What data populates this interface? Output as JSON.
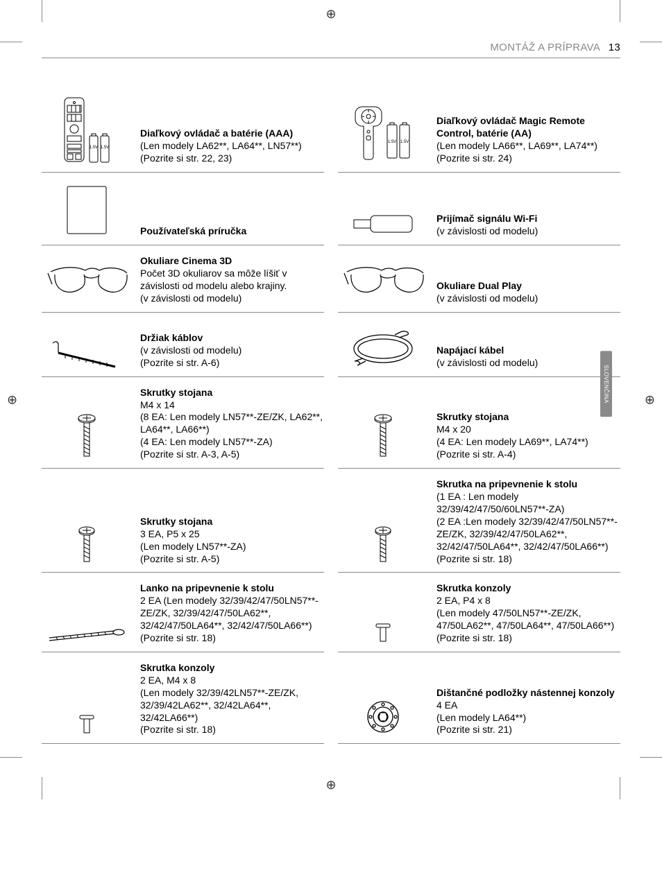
{
  "header": {
    "section": "MONTÁŽ A PRÍPRAVA",
    "page": "13"
  },
  "sidetab": "SLOVENČINA",
  "items": [
    {
      "col": 0,
      "title": "Diaľkový ovládač a batérie (AAA)",
      "sub": "(Len modely LA62**, LA64**, LN57**)\n(Pozrite si str. 22, 23)",
      "icon": "remote-batteries"
    },
    {
      "col": 1,
      "title": "Diaľkový ovládač Magic Remote Control, batérie (AA)",
      "sub": "(Len modely LA66**, LA69**, LA74**)\n(Pozrite si str. 24)",
      "icon": "magic-remote-batteries"
    },
    {
      "col": 0,
      "title": "Používateľská príručka",
      "sub": "",
      "icon": "manual"
    },
    {
      "col": 1,
      "title": "Prijímač signálu Wi-Fi",
      "sub": "(v závislosti od modelu)",
      "icon": "wifi-dongle"
    },
    {
      "col": 0,
      "title": "Okuliare Cinema 3D",
      "sub": "Počet 3D okuliarov sa môže líšiť v závislosti od modelu alebo krajiny.\n(v závislosti od modelu)",
      "icon": "glasses"
    },
    {
      "col": 1,
      "title": "Okuliare Dual Play",
      "sub": "(v závislosti od modelu)",
      "icon": "glasses"
    },
    {
      "col": 0,
      "title": "Držiak káblov",
      "sub": "(v závislosti od modelu)\n(Pozrite si str. A-6)",
      "icon": "cable-holder"
    },
    {
      "col": 1,
      "title": "Napájací kábel",
      "sub": "(v závislosti od modelu)",
      "icon": "power-cord"
    },
    {
      "col": 0,
      "title": "Skrutky stojana",
      "sub": "M4 x 14\n(8 EA: Len modely LN57**-ZE/ZK, LA62**, LA64**, LA66**)\n(4 EA: Len modely LN57**-ZA)\n(Pozrite si str. A-3, A-5)",
      "icon": "screw-long"
    },
    {
      "col": 1,
      "title": "Skrutky stojana",
      "sub": "M4 x 20\n(4 EA: Len modely LA69**, LA74**)\n(Pozrite si str. A-4)",
      "icon": "screw-long"
    },
    {
      "col": 0,
      "title": "Skrutky stojana",
      "sub": "3 EA, P5 x 25\n(Len modely LN57**-ZA)\n(Pozrite si str. A-5)",
      "icon": "screw-med"
    },
    {
      "col": 1,
      "title": "Skrutka na pripevnenie k stolu",
      "sub": "(1 EA : Len modely 32/39/42/47/50/60LN57**-ZA)\n(2 EA :Len modely 32/39/42/47/50LN57**-ZE/ZK, 32/39/42/47/50LA62**, 32/42/47/50LA64**, 32/42/47/50LA66**)\n(Pozrite si str. 18)",
      "icon": "screw-med"
    },
    {
      "col": 0,
      "title": "Lanko na pripevnenie k stolu",
      "sub": "2 EA (Len modely 32/39/42/47/50LN57**-ZE/ZK, 32/39/42/47/50LA62**, 32/42/47/50LA64**, 32/42/47/50LA66**)\n(Pozrite si str. 18)",
      "icon": "cable-tie"
    },
    {
      "col": 1,
      "title": "Skrutka konzoly",
      "sub": "2 EA, P4 x 8\n(Len modely 47/50LN57**-ZE/ZK, 47/50LA62**, 47/50LA64**, 47/50LA66**)\n(Pozrite si str. 18)",
      "icon": "screw-short"
    },
    {
      "col": 0,
      "title": "Skrutka konzoly",
      "sub": "2 EA, M4 x 8\n(Len modely 32/39/42LN57**-ZE/ZK, 32/39/42LA62**, 32/42LA64**, 32/42LA66**)\n(Pozrite si str. 18)",
      "icon": "screw-short"
    },
    {
      "col": 1,
      "title": "Dištančné podložky nástennej konzoly",
      "sub": "4 EA\n(Len modely LA64**)\n(Pozrite si str. 21)",
      "icon": "spacer"
    }
  ],
  "colors": {
    "rule": "#888888",
    "text": "#000000",
    "headerText": "#888888",
    "tabBg": "#8a8a8a",
    "tabText": "#ffffff"
  }
}
